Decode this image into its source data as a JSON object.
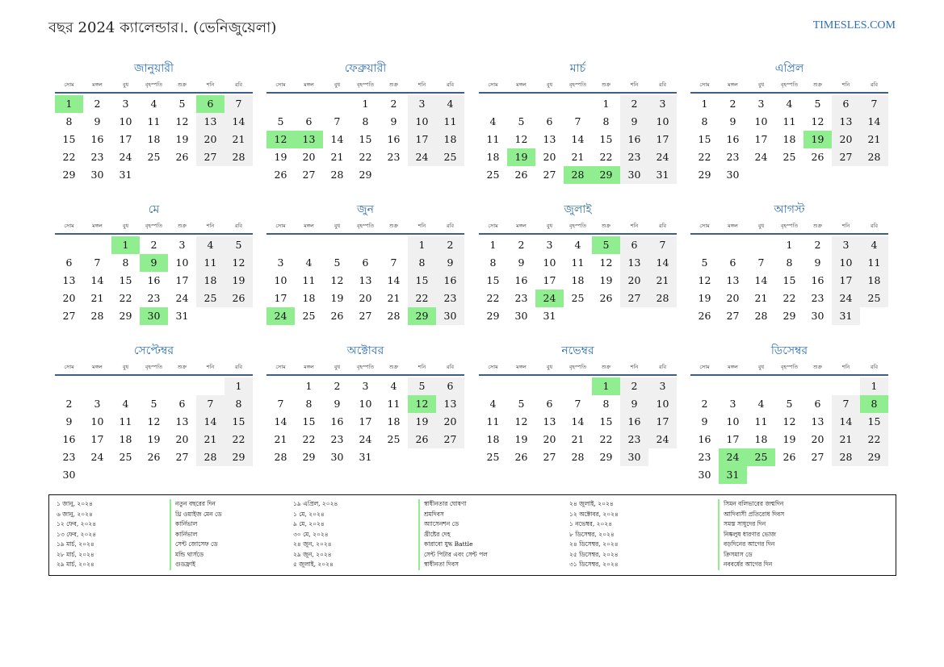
{
  "header": {
    "title": "বছর 2024 ক্যালেন্ডার।. (ভেনিজুয়েলা)",
    "site": "TIMESLES.COM"
  },
  "weekdays": [
    "সোম",
    "মঙ্গল",
    "বুধ",
    "বৃহস্পতি",
    "শুক্র",
    "শনি",
    "রবি"
  ],
  "months": [
    {
      "name": "জানুয়ারী",
      "offset": 0,
      "days": 31,
      "holidays": [
        1,
        6
      ]
    },
    {
      "name": "ফেব্রুয়ারী",
      "offset": 3,
      "days": 29,
      "holidays": [
        12,
        13
      ]
    },
    {
      "name": "মার্চ",
      "offset": 4,
      "days": 31,
      "holidays": [
        19,
        28,
        29
      ]
    },
    {
      "name": "এপ্রিল",
      "offset": 0,
      "days": 30,
      "holidays": [
        19
      ]
    },
    {
      "name": "মে",
      "offset": 2,
      "days": 31,
      "holidays": [
        1,
        9,
        30
      ]
    },
    {
      "name": "জুন",
      "offset": 5,
      "days": 30,
      "holidays": [
        24,
        29
      ]
    },
    {
      "name": "জুলাই",
      "offset": 0,
      "days": 31,
      "holidays": [
        5,
        24
      ]
    },
    {
      "name": "আগস্ট",
      "offset": 3,
      "days": 31,
      "holidays": []
    },
    {
      "name": "সেপ্টেম্বর",
      "offset": 6,
      "days": 30,
      "holidays": []
    },
    {
      "name": "অক্টোবর",
      "offset": 1,
      "days": 31,
      "holidays": [
        12
      ]
    },
    {
      "name": "নভেম্বর",
      "offset": 4,
      "days": 30,
      "holidays": [
        1
      ]
    },
    {
      "name": "ডিসেম্বর",
      "offset": 6,
      "days": 31,
      "holidays": [
        8,
        24,
        25,
        31
      ]
    }
  ],
  "legend": [
    {
      "date": "১ জানু, ২০২৪",
      "name": "নতুন বছরের দিন"
    },
    {
      "date": "৬ জানু, ২০২৪",
      "name": "থ্রি ওয়াইজ মেন ডে"
    },
    {
      "date": "১২ ফেব, ২০২৪",
      "name": "কার্নিভাল"
    },
    {
      "date": "১৩ ফেব, ২০২৪",
      "name": "কার্নিভাল"
    },
    {
      "date": "১৯ মার্চ, ২০২৪",
      "name": "সেন্ট জোসেফ ডে"
    },
    {
      "date": "২৮ মার্চ, ২০২৪",
      "name": "মন্ডি থার্সডে"
    },
    {
      "date": "২৯ মার্চ, ২০২৪",
      "name": "গুডফ্রাই"
    },
    {
      "date": "১৯ এপ্রিল, ২০২৪",
      "name": "স্বাধীনতার ঘোষণা"
    },
    {
      "date": "১ মে, ২০২৪",
      "name": "শ্রমদিবস"
    },
    {
      "date": "৯ মে, ২০২৪",
      "name": "অ্যাসেনশন ডে"
    },
    {
      "date": "৩০ মে, ২০২৪",
      "name": "খ্রীষ্টের দেহ"
    },
    {
      "date": "২৪ জুন, ২০২৪",
      "name": "কারাবো যুদ্ধ Battle"
    },
    {
      "date": "২৯ জুন, ২০২৪",
      "name": "সেন্ট পিটার এবং সেন্ট পল"
    },
    {
      "date": "৫ জুলাই, ২০২৪",
      "name": "স্বাধীনতা দিবস"
    },
    {
      "date": "২৪ জুলাই, ২০২৪",
      "name": "সিমন বলিভারের জন্মদিন"
    },
    {
      "date": "১২ অক্টোবর, ২০২৪",
      "name": "আদিবাসী প্রতিরোধ দিবস"
    },
    {
      "date": "১ নভেম্বর, ২০২৪",
      "name": "সমস্ত সাধুদের দিন"
    },
    {
      "date": "৮ ডিসেম্বর, ২০২৪",
      "name": "নিষ্কলুষ ধারণার ভোজ"
    },
    {
      "date": "২৪ ডিসেম্বর, ২০২৪",
      "name": "বড়দিনের আগের দিন"
    },
    {
      "date": "২৫ ডিসেম্বর, ২০২৪",
      "name": "ক্রিসমাস ডে"
    },
    {
      "date": "৩১ ডিসেম্বর, ২০২৪",
      "name": "নববর্ষের আগের দিন"
    }
  ]
}
